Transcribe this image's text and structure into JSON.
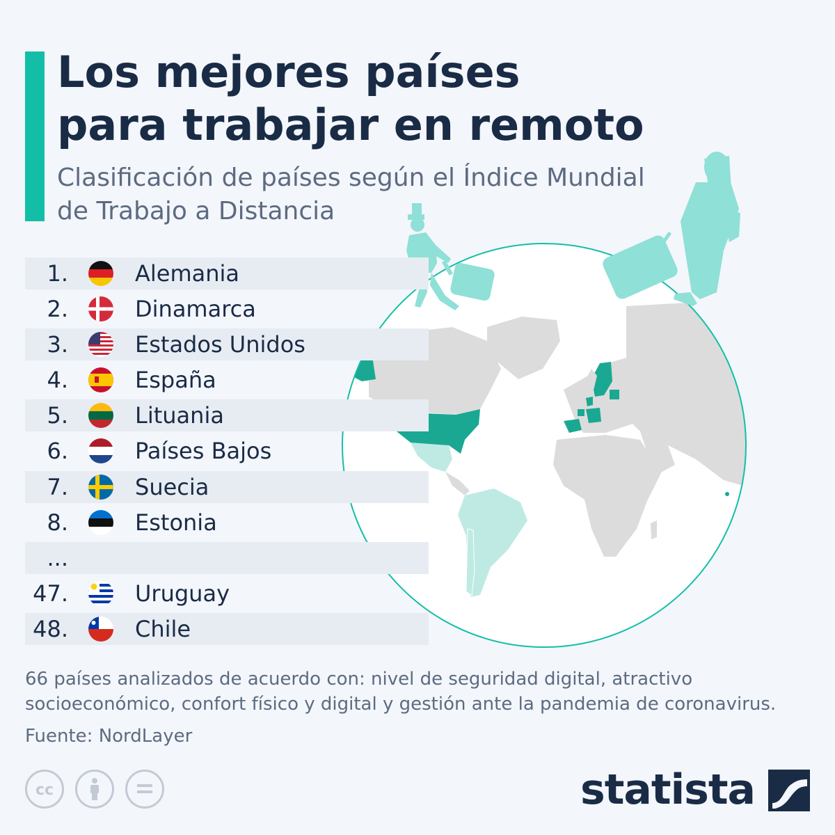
{
  "title_lines": [
    "Los mejores países",
    "para trabajar en remoto"
  ],
  "subtitle_lines": [
    "Clasificación de países según el Índice Mundial",
    "de Trabajo a Distancia"
  ],
  "ranking": [
    {
      "rank": "1.",
      "country": "Alemania",
      "flag": "germany-flag-icon"
    },
    {
      "rank": "2.",
      "country": "Dinamarca",
      "flag": "denmark-flag-icon"
    },
    {
      "rank": "3.",
      "country": "Estados Unidos",
      "flag": "usa-flag-icon"
    },
    {
      "rank": "4.",
      "country": "España",
      "flag": "spain-flag-icon"
    },
    {
      "rank": "5.",
      "country": "Lituania",
      "flag": "lithuania-flag-icon"
    },
    {
      "rank": "6.",
      "country": "Países Bajos",
      "flag": "netherlands-flag-icon"
    },
    {
      "rank": "7.",
      "country": "Suecia",
      "flag": "sweden-flag-icon"
    },
    {
      "rank": "8.",
      "country": "Estonia",
      "flag": "estonia-flag-icon"
    },
    {
      "rank": "...",
      "country": "",
      "flag": ""
    },
    {
      "rank": "47.",
      "country": "Uruguay",
      "flag": "uruguay-flag-icon"
    },
    {
      "rank": "48.",
      "country": "Chile",
      "flag": "chile-flag-icon"
    }
  ],
  "footnote_lines": [
    "66 países analizados de acuerdo con: nivel de seguridad digital, atractivo",
    "socioeconómico, confort físico y digital y gestión ante la pandemia de coronavirus."
  ],
  "source": "Fuente: NordLayer",
  "logo_text": "statista",
  "license_icons": [
    "creative-commons-icon",
    "attribution-icon",
    "no-derivatives-icon"
  ],
  "colors": {
    "accent": "#12bfa6",
    "top_country": "#1aa893",
    "latam_country": "#bfeae4",
    "other_land": "#dcdcdc",
    "text": "#1a2b45",
    "muted": "#5d6b80"
  }
}
